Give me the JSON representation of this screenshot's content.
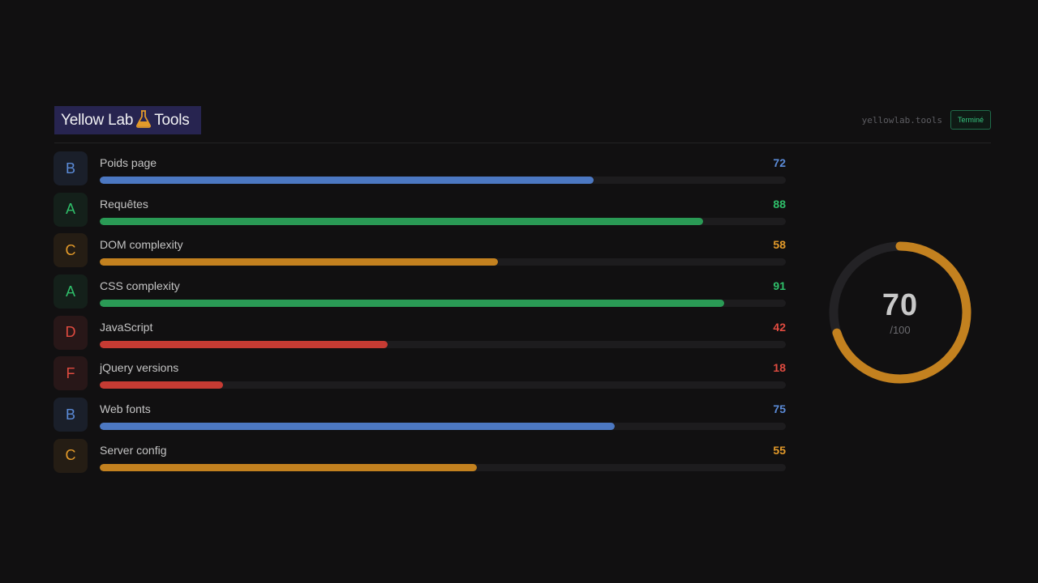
{
  "header": {
    "logo_left": "Yellow Lab",
    "logo_right": "Tools",
    "site": "yellowlab.tools",
    "status": "Terminé"
  },
  "colors": {
    "blue": "#5b8bd8",
    "green": "#2fbf6a",
    "orange": "#d48a22",
    "red": "#d8443b"
  },
  "metrics": [
    {
      "grade": "B",
      "label": "Poids page",
      "value": 72,
      "color": "#5b8bd8",
      "bar": "#4c78c2",
      "badge": "#1a1f2a"
    },
    {
      "grade": "A",
      "label": "Requêtes",
      "value": 88,
      "color": "#2fbf6a",
      "bar": "#2a9a55",
      "badge": "#14201a"
    },
    {
      "grade": "C",
      "label": "DOM complexity",
      "value": 58,
      "color": "#e39a2a",
      "bar": "#c3811f",
      "badge": "#251d14"
    },
    {
      "grade": "A",
      "label": "CSS complexity",
      "value": 91,
      "color": "#2fbf6a",
      "bar": "#2a9a55",
      "badge": "#14201a"
    },
    {
      "grade": "D",
      "label": "JavaScript",
      "value": 42,
      "color": "#e04b40",
      "bar": "#c63b33",
      "badge": "#281718"
    },
    {
      "grade": "F",
      "label": "jQuery versions",
      "value": 18,
      "color": "#e04b40",
      "bar": "#c63b33",
      "badge": "#281718"
    },
    {
      "grade": "B",
      "label": "Web fonts",
      "value": 75,
      "color": "#5b8bd8",
      "bar": "#4c78c2",
      "badge": "#1a1f2a"
    },
    {
      "grade": "C",
      "label": "Server config",
      "value": 55,
      "color": "#e39a2a",
      "bar": "#c3811f",
      "badge": "#251d14"
    }
  ],
  "overall": {
    "score": "70",
    "max": "/100",
    "value": 70,
    "color": "#c3811f"
  }
}
